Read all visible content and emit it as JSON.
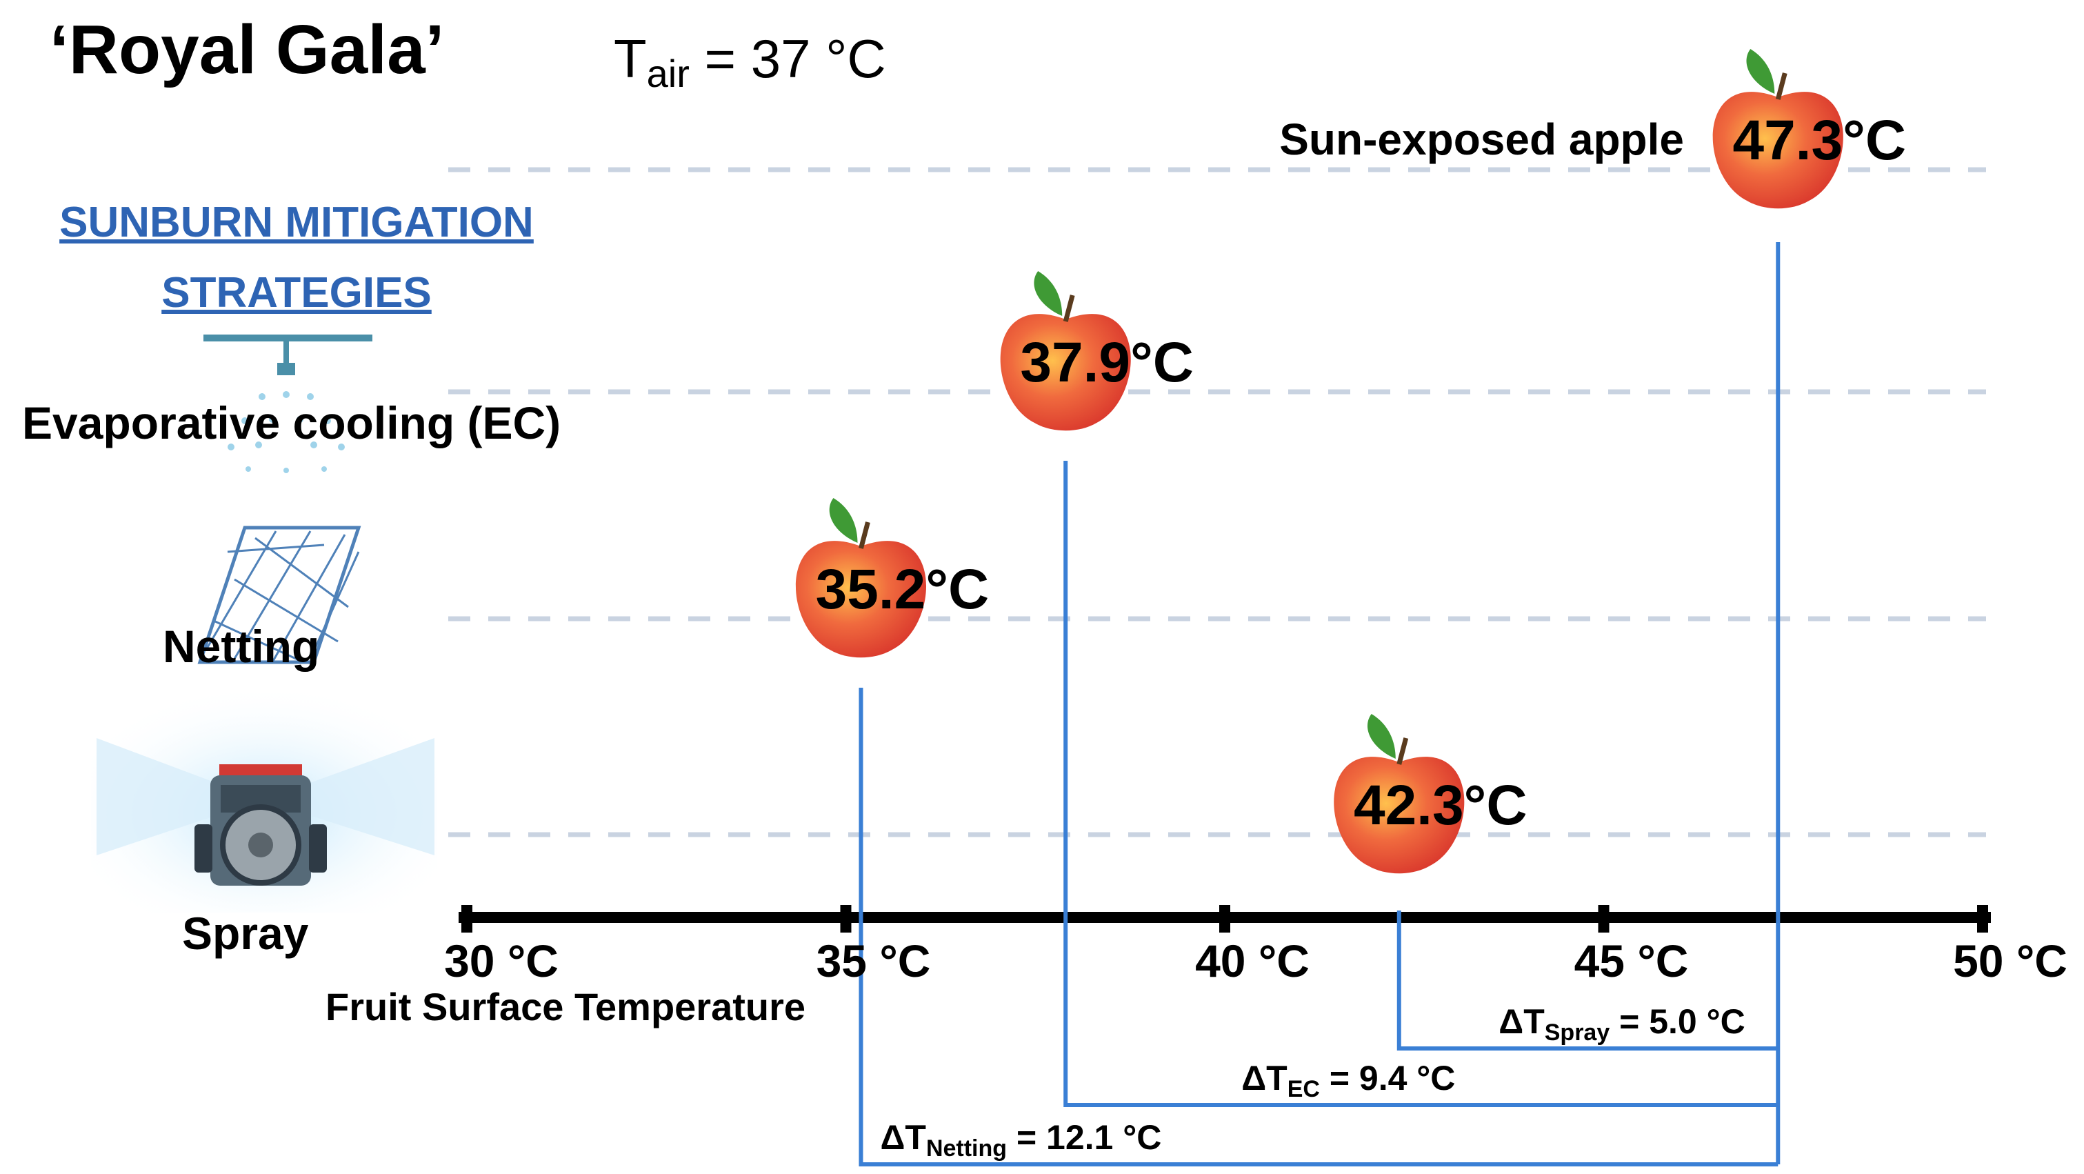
{
  "header": {
    "title": "‘Royal Gala’",
    "tair_prefix": "T",
    "tair_sub": "air",
    "tair_value": " = 37 °C",
    "strategies_heading": "SUNBURN MITIGATION STRATEGIES"
  },
  "chart_data": {
    "type": "scatter",
    "xlabel": "Fruit Surface Temperature",
    "xlim": [
      30,
      50
    ],
    "xticks": [
      30,
      35,
      40,
      45,
      50
    ],
    "tick_labels": [
      "30 °C",
      "35 °C",
      "40 °C",
      "45 °C",
      "50 °C"
    ],
    "grid": "dashed horizontal rows",
    "reference": {
      "label": "Sun-exposed apple",
      "value": 47.3,
      "text": "47.3°C"
    },
    "points": [
      {
        "strategy": "Evaporative cooling (EC)",
        "value": 37.9,
        "text": "37.9°C"
      },
      {
        "strategy": "Netting",
        "value": 35.2,
        "text": "35.2°C"
      },
      {
        "strategy": "Spray",
        "value": 42.3,
        "text": "42.3°C"
      }
    ],
    "differences": [
      {
        "key": "spray",
        "delta_sub": "Spray",
        "from": 42.3,
        "to": 47.3,
        "text": " = 5.0 °C"
      },
      {
        "key": "ec",
        "delta_sub": "EC",
        "from": 37.9,
        "to": 47.3,
        "text": " = 9.4 °C"
      },
      {
        "key": "netting",
        "delta_sub": "Netting",
        "from": 35.2,
        "to": 47.3,
        "text": " = 12.1 °C"
      }
    ],
    "delta_prefix": "ΔT"
  },
  "colors": {
    "accent": "#2e64b4",
    "bracket": "#3a7fd5",
    "grid": "#c9d3e1",
    "axis": "#000000",
    "apple": "#e8453c",
    "leaf": "#3f9a35"
  },
  "icons": {
    "ec": "sprinkler-icon",
    "netting": "net-icon",
    "spray": "sprayer-tractor-icon",
    "fruit": "apple-icon"
  }
}
